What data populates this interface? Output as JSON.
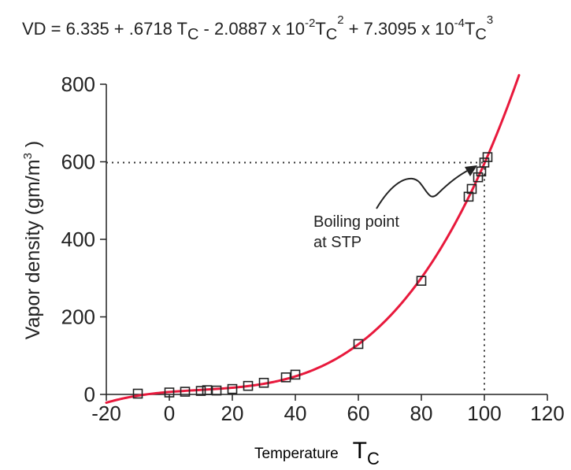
{
  "chart_data": {
    "type": "scatter",
    "title": "",
    "equation": {
      "prefix": "VD = 6.335 + .6718 T",
      "sub1": "C",
      "mid1": " - 2.0887 x 10",
      "sup1": "-2",
      "t2": "T",
      "sub2": "C",
      "pow2": "2",
      "mid2": "  + 7.3095 x 10",
      "sup2": "-4",
      "t3": "T",
      "sub3": "C",
      "pow3": "3"
    },
    "xlabel": "Temperature",
    "xlabel_symbol": "T",
    "xlabel_sub": "C",
    "ylabel": "Vapor density (gm/m",
    "ylabel_sup": "3",
    "ylabel_close": " )",
    "xlim": [
      -20,
      120
    ],
    "ylim": [
      0,
      800
    ],
    "xticks": [
      -20,
      0,
      20,
      40,
      60,
      80,
      100,
      120
    ],
    "yticks": [
      0,
      200,
      400,
      600,
      800
    ],
    "grid": false,
    "series": [
      {
        "kind": "points",
        "marker": "square",
        "x": [
          -10,
          0,
          5,
          10,
          12,
          15,
          20,
          25,
          30,
          37,
          40,
          60,
          80,
          95,
          96,
          98,
          99,
          100,
          101
        ],
        "y": [
          2,
          5,
          7,
          9,
          11,
          10,
          14,
          22,
          30,
          44,
          51,
          130,
          293,
          510,
          530,
          560,
          575,
          598,
          612
        ]
      },
      {
        "kind": "curve",
        "x_range": [
          -20,
          111
        ],
        "coefficients": [
          6.335,
          0.6718,
          -0.020887,
          0.00073095
        ],
        "color": "#e8193c"
      }
    ],
    "reference_lines": {
      "x": 100,
      "y": 598,
      "style": "dotted",
      "color": "#333333"
    },
    "annotation": {
      "line1": "Boiling point",
      "line2": "at STP",
      "points_to": [
        100,
        598
      ]
    }
  }
}
